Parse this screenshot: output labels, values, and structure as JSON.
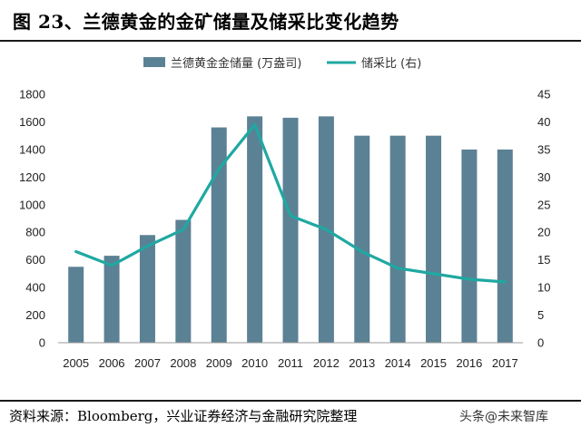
{
  "header": {
    "title": "图 23、兰德黄金的金矿储量及储采比变化趋势"
  },
  "footer": {
    "source": "资料来源：Bloomberg，兴业证券经济与金融研究院整理",
    "watermark": "头条@未来智库"
  },
  "colors": {
    "bar": "#5b8194",
    "line": "#1fa8a2",
    "axis": "#999999",
    "rule": "#1a1a1a"
  },
  "chart_data": {
    "type": "bar",
    "categories": [
      "2005",
      "2006",
      "2007",
      "2008",
      "2009",
      "2010",
      "2011",
      "2012",
      "2013",
      "2014",
      "2015",
      "2016",
      "2017"
    ],
    "series": [
      {
        "name": "兰德黄金金储量 (万盎司)",
        "type": "bar",
        "axis": "left",
        "values": [
          550,
          630,
          780,
          890,
          1560,
          1640,
          1630,
          1640,
          1500,
          1500,
          1500,
          1400,
          1400
        ]
      },
      {
        "name": "储采比 (右)",
        "type": "line",
        "axis": "right",
        "values": [
          16.5,
          14.0,
          17.5,
          20.5,
          31.5,
          39.5,
          23.0,
          20.5,
          16.5,
          13.5,
          12.5,
          11.5,
          11.0
        ]
      }
    ],
    "y_left": {
      "ylim": [
        0,
        1800
      ],
      "ticks": [
        0,
        200,
        400,
        600,
        800,
        1000,
        1200,
        1400,
        1600,
        1800
      ]
    },
    "y_right": {
      "ylim": [
        0,
        45
      ],
      "ticks": [
        0,
        5,
        10,
        15,
        20,
        25,
        30,
        35,
        40,
        45
      ]
    },
    "legend": {
      "position": "top"
    },
    "grid": false
  }
}
